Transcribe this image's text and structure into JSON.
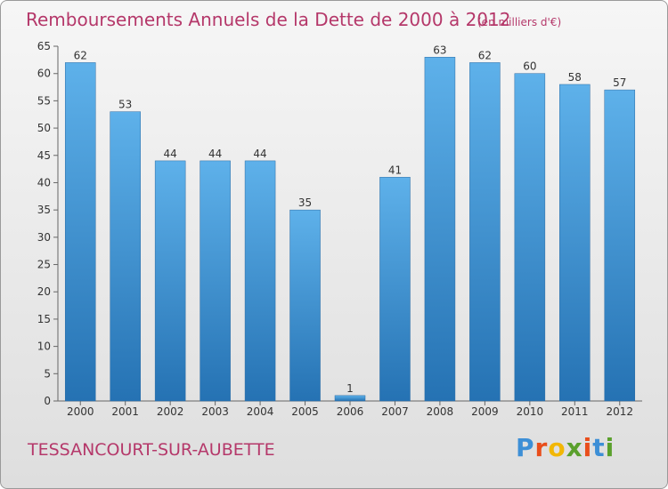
{
  "chart_data": {
    "type": "bar",
    "title": "Remboursements Annuels de la Dette de 2000 à 2012",
    "unit_note": "(en milliers d'€)",
    "categories": [
      "2000",
      "2001",
      "2002",
      "2003",
      "2004",
      "2005",
      "2006",
      "2007",
      "2008",
      "2009",
      "2010",
      "2011",
      "2012"
    ],
    "values": [
      62,
      53,
      44,
      44,
      44,
      35,
      1,
      41,
      63,
      62,
      60,
      58,
      57
    ],
    "value_labels": [
      "62",
      "53",
      "44",
      "44",
      "44",
      "35",
      "1",
      "41",
      "63",
      "62",
      "60",
      "58",
      "57"
    ],
    "ylim": [
      0,
      65
    ],
    "yticks": [
      0,
      5,
      10,
      15,
      20,
      25,
      30,
      35,
      40,
      45,
      50,
      55,
      60,
      65
    ],
    "ytick_labels": [
      "0",
      "5",
      "10",
      "15",
      "20",
      "25",
      "30",
      "35",
      "40",
      "45",
      "50",
      "55",
      "60",
      "65"
    ],
    "xlabel": "",
    "ylabel": "",
    "grid": false,
    "colors": {
      "bar_top": "#5eb1ea",
      "bar_bottom": "#2572b3",
      "accent": "#b5386a"
    }
  },
  "footer": {
    "commune": "TESSANCOURT-SUR-AUBETTE",
    "brand_letters": [
      "P",
      "r",
      "o",
      "x",
      "i",
      "t",
      "i"
    ],
    "brand_colors": [
      "#3d8fd6",
      "#e94e1b",
      "#f2b705",
      "#5aa02c",
      "#e94e1b",
      "#3d8fd6",
      "#5aa02c"
    ]
  }
}
